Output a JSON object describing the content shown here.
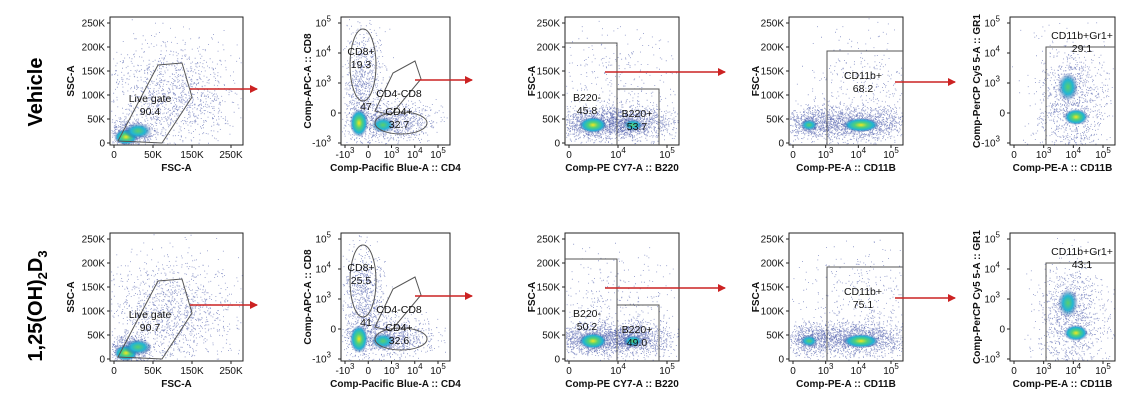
{
  "row_labels": {
    "top": "Vehicle",
    "bottom_base": "1,25(OH)",
    "bottom_sub1": "2",
    "bottom_mid": "D",
    "bottom_sub2": "3"
  },
  "colors": {
    "arrow": "#cc2222",
    "gate": "#555555",
    "density_low": "#2c3e9a",
    "density_mid": "#22c0d0",
    "density_high": "#f0e020"
  },
  "chart_data": [
    {
      "type": "scatter",
      "panel": "row1-live-gate",
      "xlabel": "FSC-A",
      "ylabel": "SSC-A",
      "xticks": [
        "0",
        "50K",
        "150K",
        "250K"
      ],
      "yticks": [
        "0",
        "50K",
        "100K",
        "150K",
        "200K",
        "250K"
      ],
      "gates": [
        {
          "name": "Live gate",
          "value": "90.4"
        }
      ]
    },
    {
      "type": "scatter",
      "panel": "row1-cd4-cd8",
      "xlabel": "Comp-Pacific Blue-A :: CD4",
      "ylabel": "Comp-APC-A :: CD8",
      "xticks": [
        "-10",
        "0",
        "10",
        "10",
        "10"
      ],
      "xtick_exp": [
        "3",
        "",
        "3",
        "4",
        "5"
      ],
      "yticks": [
        "-10",
        "0",
        "10",
        "10",
        "10"
      ],
      "ytick_exp": [
        "3",
        "",
        "3",
        "4",
        "5"
      ],
      "gates": [
        {
          "name": "CD8+",
          "value": "19.3"
        },
        {
          "name": "CD4-CD8",
          "value": "47"
        },
        {
          "name": "CD4+",
          "value": "32.7"
        }
      ]
    },
    {
      "type": "scatter",
      "panel": "row1-b220",
      "xlabel": "Comp-PE CY7-A :: B220",
      "ylabel": "FSC-A",
      "xticks": [
        "0",
        "10",
        "10"
      ],
      "xtick_exp": [
        "",
        "4",
        "5"
      ],
      "yticks": [
        "0",
        "50K",
        "100K",
        "150K",
        "200K",
        "250K"
      ],
      "gates": [
        {
          "name": "B220-",
          "value": "45.8"
        },
        {
          "name": "B220+",
          "value": "53.7"
        }
      ]
    },
    {
      "type": "scatter",
      "panel": "row1-cd11b",
      "xlabel": "Comp-PE-A :: CD11B",
      "ylabel": "FSC-A",
      "xticks": [
        "0",
        "10",
        "10",
        "10"
      ],
      "xtick_exp": [
        "",
        "3",
        "4",
        "5"
      ],
      "yticks": [
        "0",
        "50K",
        "100K",
        "150K",
        "200K",
        "250K"
      ],
      "gates": [
        {
          "name": "CD11b+",
          "value": "68.2"
        }
      ]
    },
    {
      "type": "scatter",
      "panel": "row1-gr1",
      "xlabel": "Comp-PE-A :: CD11B",
      "ylabel": "Comp-PerCP Cy5 5-A :: GR1",
      "xticks": [
        "0",
        "10",
        "10",
        "10"
      ],
      "xtick_exp": [
        "",
        "3",
        "4",
        "5"
      ],
      "yticks": [
        "-10",
        "0",
        "10",
        "10",
        "10"
      ],
      "ytick_exp": [
        "3",
        "",
        "3",
        "4",
        "5"
      ],
      "gates": [
        {
          "name": "CD11b+Gr1+",
          "value": "29.1"
        }
      ]
    },
    {
      "type": "scatter",
      "panel": "row2-live-gate",
      "xlabel": "FSC-A",
      "ylabel": "SSC-A",
      "xticks": [
        "0",
        "50K",
        "150K",
        "250K"
      ],
      "yticks": [
        "0",
        "50K",
        "100K",
        "150K",
        "200K",
        "250K"
      ],
      "gates": [
        {
          "name": "Live gate",
          "value": "90.7"
        }
      ]
    },
    {
      "type": "scatter",
      "panel": "row2-cd4-cd8",
      "xlabel": "Comp-Pacific Blue-A :: CD4",
      "ylabel": "Comp-APC-A :: CD8",
      "xticks": [
        "-10",
        "0",
        "10",
        "10",
        "10"
      ],
      "xtick_exp": [
        "3",
        "",
        "3",
        "4",
        "5"
      ],
      "yticks": [
        "-10",
        "0",
        "10",
        "10",
        "10"
      ],
      "ytick_exp": [
        "3",
        "",
        "3",
        "4",
        "5"
      ],
      "gates": [
        {
          "name": "CD8+",
          "value": "25.5"
        },
        {
          "name": "CD4-CD8",
          "value": "41"
        },
        {
          "name": "CD4+",
          "value": "32.6"
        }
      ]
    },
    {
      "type": "scatter",
      "panel": "row2-b220",
      "xlabel": "Comp-PE CY7-A :: B220",
      "ylabel": "FSC-A",
      "xticks": [
        "0",
        "10",
        "10"
      ],
      "xtick_exp": [
        "",
        "4",
        "5"
      ],
      "yticks": [
        "0",
        "50K",
        "100K",
        "150K",
        "200K",
        "250K"
      ],
      "gates": [
        {
          "name": "B220-",
          "value": "50.2"
        },
        {
          "name": "B220+",
          "value": "49.0"
        }
      ]
    },
    {
      "type": "scatter",
      "panel": "row2-cd11b",
      "xlabel": "Comp-PE-A :: CD11B",
      "ylabel": "FSC-A",
      "xticks": [
        "0",
        "10",
        "10",
        "10"
      ],
      "xtick_exp": [
        "",
        "3",
        "4",
        "5"
      ],
      "yticks": [
        "0",
        "50K",
        "100K",
        "150K",
        "200K",
        "250K"
      ],
      "gates": [
        {
          "name": "CD11b+",
          "value": "75.1"
        }
      ]
    },
    {
      "type": "scatter",
      "panel": "row2-gr1",
      "xlabel": "Comp-PE-A :: CD11B",
      "ylabel": "Comp-PerCP Cy5 5-A :: GR1",
      "xticks": [
        "0",
        "10",
        "10",
        "10"
      ],
      "xtick_exp": [
        "",
        "3",
        "4",
        "5"
      ],
      "yticks": [
        "-10",
        "0",
        "10",
        "10",
        "10"
      ],
      "ytick_exp": [
        "3",
        "",
        "3",
        "4",
        "5"
      ],
      "gates": [
        {
          "name": "CD11b+Gr1+",
          "value": "43.1"
        }
      ]
    }
  ]
}
